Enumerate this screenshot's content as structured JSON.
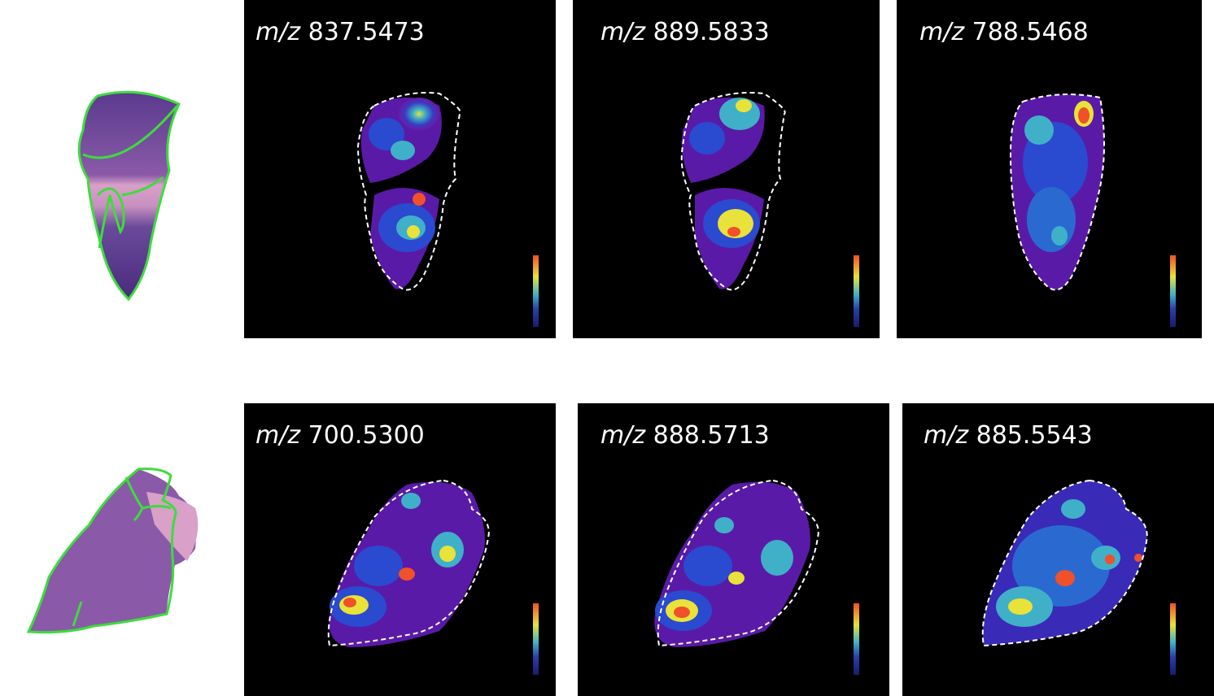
{
  "figure": {
    "rows": [
      {
        "he_image": {
          "tissue": "he-section-top"
        },
        "panels": [
          {
            "prefix": "m/z",
            "value": "837.5473"
          },
          {
            "prefix": "m/z",
            "value": "889.5833"
          },
          {
            "prefix": "m/z",
            "value": "788.5468"
          }
        ]
      },
      {
        "he_image": {
          "tissue": "he-section-bottom"
        },
        "panels": [
          {
            "prefix": "m/z",
            "value": "700.5300"
          },
          {
            "prefix": "m/z",
            "value": "888.5713"
          },
          {
            "prefix": "m/z",
            "value": "885.5543"
          }
        ]
      }
    ],
    "colors": {
      "panel_background": "#000000",
      "roi_outline": "#3ddc3d",
      "tissue_stain": "#7a4aa0",
      "stroma": "#d9a0c8",
      "dashed_outline": "#ffffff"
    },
    "colormap": [
      "#1a1a6e",
      "#2a3fa8",
      "#3fb0c8",
      "#e8e23a",
      "#f0502a"
    ]
  }
}
